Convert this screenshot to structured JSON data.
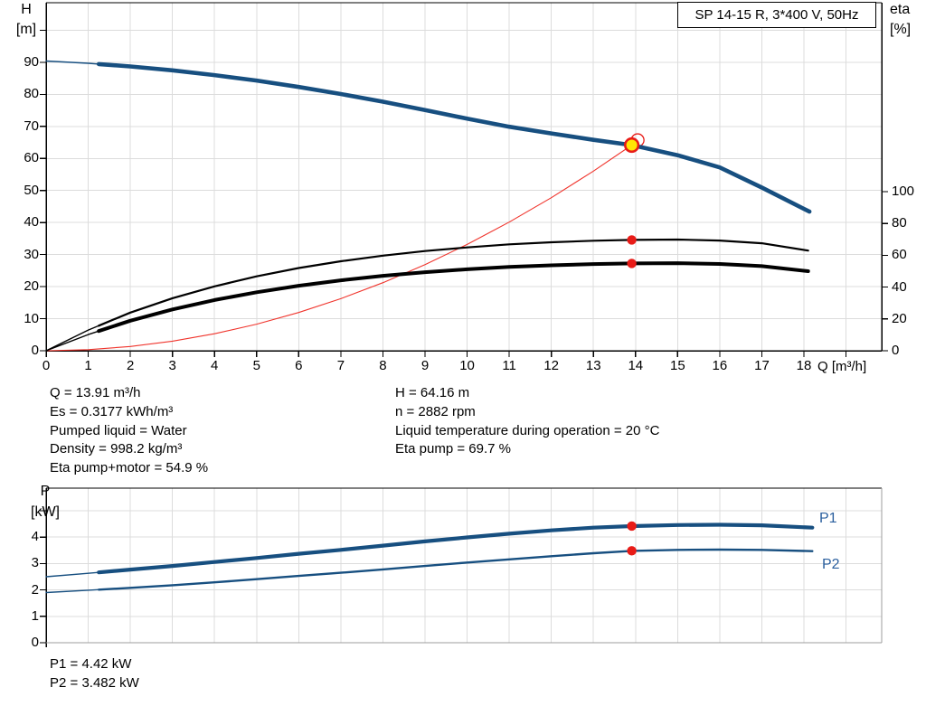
{
  "colors": {
    "curve_blue": "#174f80",
    "curve_black": "#000000",
    "curve_red": "#f0342c",
    "marker_red": "#e81b17",
    "marker_yellow": "#ffe505",
    "label_blue": "#2a5f9e",
    "grid": "#dcdcdc",
    "axis": "#000000",
    "border_gray": "#9c9c9c"
  },
  "annotations": {
    "duty_info_left": [
      "Q = 13.91 m³/h",
      "Es = 0.3177 kWh/m³",
      "Pumped liquid = Water",
      "Density = 998.2 kg/m³",
      "Eta pump+motor = 54.9 %"
    ],
    "duty_info_right": [
      "H = 64.16 m",
      "n = 2882 rpm",
      "Liquid temperature during operation = 20 °C",
      "Eta pump = 69.7 %"
    ],
    "power_info": [
      "P1 = 4.42 kW",
      "P2 = 3.482 kW"
    ]
  },
  "chart_data": [
    {
      "type": "line",
      "title": "SP 14-15 R, 3*400 V, 50Hz",
      "xlabel": "Q [m³/h]",
      "ylabel_left_lines": [
        "H",
        "[m]"
      ],
      "ylabel_right_lines": [
        "eta",
        "[%]"
      ],
      "x_range": [
        0,
        19.85
      ],
      "x_ticks": [
        0,
        1,
        2,
        3,
        4,
        5,
        6,
        7,
        8,
        9,
        10,
        11,
        12,
        13,
        14,
        15,
        16,
        17,
        18
      ],
      "y_left_range": [
        0,
        108.5
      ],
      "y_left_ticks": [
        0,
        10,
        20,
        30,
        40,
        50,
        60,
        70,
        80,
        90
      ],
      "y_right_range": [
        0,
        218
      ],
      "y_right_ticks": [
        0,
        20,
        40,
        60,
        80,
        100
      ],
      "grid": true,
      "legend_position": "none",
      "series": [
        {
          "name": "qh-curve",
          "label": "H",
          "axis": "left",
          "color_key": "curve_blue",
          "width": 4.6,
          "thin_until": 1.25,
          "points": [
            [
              0,
              90.4
            ],
            [
              1,
              89.7
            ],
            [
              2,
              88.7
            ],
            [
              3,
              87.5
            ],
            [
              4,
              86.0
            ],
            [
              5,
              84.3
            ],
            [
              6,
              82.3
            ],
            [
              7,
              80.1
            ],
            [
              8,
              77.7
            ],
            [
              9,
              75.1
            ],
            [
              10,
              72.4
            ],
            [
              11,
              69.9
            ],
            [
              12,
              67.8
            ],
            [
              13,
              65.8
            ],
            [
              13.91,
              64.16
            ],
            [
              15,
              61.0
            ],
            [
              16,
              57.2
            ],
            [
              17,
              50.9
            ],
            [
              18.13,
              43.4
            ]
          ]
        },
        {
          "name": "eta-pump",
          "label": "Eta pump",
          "axis": "right",
          "color_key": "curve_black",
          "width": 2.2,
          "thin_until": 1.25,
          "points": [
            [
              0,
              0
            ],
            [
              1,
              13
            ],
            [
              2,
              24
            ],
            [
              3,
              33
            ],
            [
              4,
              40.5
            ],
            [
              5,
              46.8
            ],
            [
              6,
              52
            ],
            [
              7,
              56.3
            ],
            [
              8,
              59.8
            ],
            [
              9,
              62.7
            ],
            [
              10,
              65
            ],
            [
              11,
              66.9
            ],
            [
              12,
              68.2
            ],
            [
              13,
              69.2
            ],
            [
              13.91,
              69.7
            ],
            [
              15,
              69.9
            ],
            [
              16,
              69.3
            ],
            [
              17,
              67.6
            ],
            [
              18.1,
              63
            ]
          ]
        },
        {
          "name": "eta-pump-motor",
          "label": "Eta pump+motor",
          "axis": "right",
          "color_key": "curve_black",
          "width": 4,
          "thin_until": 1.25,
          "points": [
            [
              0,
              0
            ],
            [
              1,
              10.2
            ],
            [
              2,
              18.9
            ],
            [
              3,
              26
            ],
            [
              4,
              31.9
            ],
            [
              5,
              36.8
            ],
            [
              6,
              40.9
            ],
            [
              7,
              44.3
            ],
            [
              8,
              47.1
            ],
            [
              9,
              49.4
            ],
            [
              10,
              51.2
            ],
            [
              11,
              52.7
            ],
            [
              12,
              53.7
            ],
            [
              13,
              54.5
            ],
            [
              13.91,
              54.9
            ],
            [
              15,
              55.1
            ],
            [
              16,
              54.6
            ],
            [
              17,
              53.2
            ],
            [
              18.1,
              50
            ]
          ]
        },
        {
          "name": "system-curve",
          "label": "Duty line",
          "axis": "left",
          "color_key": "curve_red",
          "width": 1.1,
          "points": [
            [
              0,
              0
            ],
            [
              1,
              0.33
            ],
            [
              2,
              1.33
            ],
            [
              3,
              2.98
            ],
            [
              4,
              5.31
            ],
            [
              5,
              8.29
            ],
            [
              6,
              11.94
            ],
            [
              7,
              16.25
            ],
            [
              8,
              21.23
            ],
            [
              9,
              26.86
            ],
            [
              10,
              33.17
            ],
            [
              11,
              40.13
            ],
            [
              12,
              47.76
            ],
            [
              13,
              56.05
            ],
            [
              13.91,
              64.16
            ]
          ]
        }
      ],
      "markers": [
        {
          "name": "duty-point-ghost-ring",
          "x": 14.05,
          "y": 65.7,
          "axis": "left",
          "r": 7,
          "fill": "none",
          "stroke_key": "marker_red",
          "stroke_width": 1.3,
          "layer": "back"
        },
        {
          "name": "duty-point-marker",
          "x": 13.91,
          "y": 64.16,
          "axis": "left",
          "r": 7.3,
          "fill_key": "marker_yellow",
          "stroke_key": "marker_red",
          "stroke_width": 2.6,
          "layer": "front"
        },
        {
          "name": "eta-pump-dot",
          "x": 13.91,
          "y": 69.7,
          "axis": "right",
          "r": 5.2,
          "fill_key": "marker_red",
          "layer": "front"
        },
        {
          "name": "eta-pump-motor-dot",
          "x": 13.91,
          "y": 54.9,
          "axis": "right",
          "r": 5.2,
          "fill_key": "marker_red",
          "layer": "front"
        }
      ]
    },
    {
      "type": "line",
      "ylabel_left_lines": [
        "P",
        "[kW]"
      ],
      "x_range": [
        0,
        19.85
      ],
      "y_left_range": [
        0,
        5.86
      ],
      "y_left_ticks": [
        0,
        1,
        2,
        3,
        4
      ],
      "grid": true,
      "series": [
        {
          "name": "P1",
          "label": "P1",
          "axis": "left",
          "color_key": "curve_blue",
          "width": 4.2,
          "thin_until": 1.25,
          "points": [
            [
              0,
              2.5
            ],
            [
              1,
              2.63
            ],
            [
              2,
              2.77
            ],
            [
              3,
              2.91
            ],
            [
              4,
              3.06
            ],
            [
              5,
              3.21
            ],
            [
              6,
              3.37
            ],
            [
              7,
              3.52
            ],
            [
              8,
              3.68
            ],
            [
              9,
              3.84
            ],
            [
              10,
              3.99
            ],
            [
              11,
              4.13
            ],
            [
              12,
              4.26
            ],
            [
              13,
              4.36
            ],
            [
              13.91,
              4.42
            ],
            [
              15,
              4.46
            ],
            [
              16,
              4.47
            ],
            [
              17,
              4.45
            ],
            [
              18.2,
              4.36
            ]
          ]
        },
        {
          "name": "P2",
          "label": "P2",
          "axis": "left",
          "color_key": "curve_blue",
          "width": 2.4,
          "thin_until": 1.25,
          "points": [
            [
              0,
              1.9
            ],
            [
              1,
              1.99
            ],
            [
              2,
              2.08
            ],
            [
              3,
              2.18
            ],
            [
              4,
              2.29
            ],
            [
              5,
              2.41
            ],
            [
              6,
              2.53
            ],
            [
              7,
              2.65
            ],
            [
              8,
              2.78
            ],
            [
              9,
              2.91
            ],
            [
              10,
              3.04
            ],
            [
              11,
              3.16
            ],
            [
              12,
              3.28
            ],
            [
              13,
              3.39
            ],
            [
              13.91,
              3.482
            ],
            [
              15,
              3.52
            ],
            [
              16,
              3.53
            ],
            [
              17,
              3.52
            ],
            [
              18.2,
              3.47
            ]
          ]
        }
      ],
      "markers": [
        {
          "name": "p1-dot",
          "x": 13.91,
          "y": 4.42,
          "axis": "left",
          "r": 5.2,
          "fill_key": "marker_red",
          "layer": "front"
        },
        {
          "name": "p2-dot",
          "x": 13.91,
          "y": 3.482,
          "axis": "left",
          "r": 5.2,
          "fill_key": "marker_red",
          "layer": "front"
        }
      ]
    }
  ]
}
